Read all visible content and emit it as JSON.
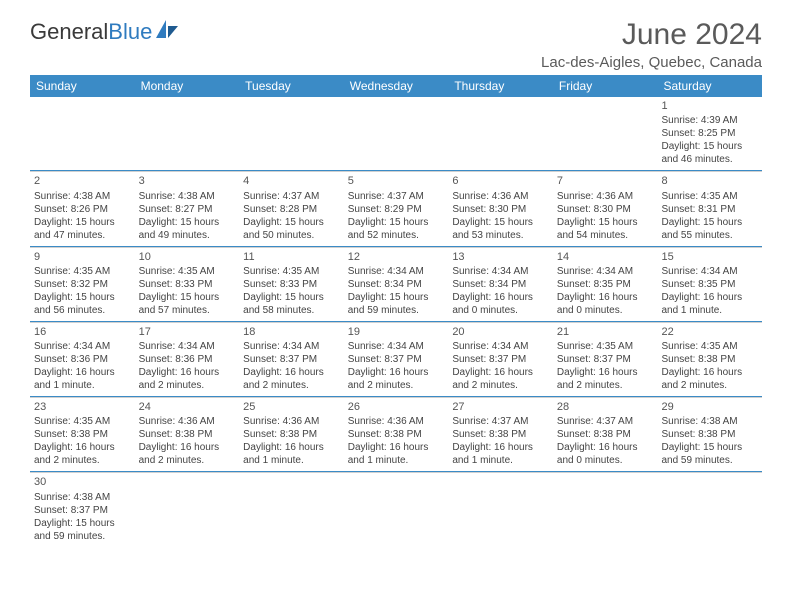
{
  "brand": {
    "word1": "General",
    "word2": "Blue"
  },
  "title": "June 2024",
  "location": "Lac-des-Aigles, Quebec, Canada",
  "dayHeaders": [
    "Sunday",
    "Monday",
    "Tuesday",
    "Wednesday",
    "Thursday",
    "Friday",
    "Saturday"
  ],
  "colors": {
    "headerBg": "#3b8bc6",
    "headerText": "#ffffff",
    "rowDivider": "#3b8bc6",
    "cellDivider": "#d0d0d0",
    "textMain": "#444444",
    "titleText": "#5a5a5a",
    "logoGray": "#3a3a3a",
    "logoBlue": "#2f7bbf"
  },
  "weeks": [
    [
      null,
      null,
      null,
      null,
      null,
      null,
      {
        "n": "1",
        "sr": "Sunrise: 4:39 AM",
        "ss": "Sunset: 8:25 PM",
        "d1": "Daylight: 15 hours",
        "d2": "and 46 minutes."
      }
    ],
    [
      {
        "n": "2",
        "sr": "Sunrise: 4:38 AM",
        "ss": "Sunset: 8:26 PM",
        "d1": "Daylight: 15 hours",
        "d2": "and 47 minutes."
      },
      {
        "n": "3",
        "sr": "Sunrise: 4:38 AM",
        "ss": "Sunset: 8:27 PM",
        "d1": "Daylight: 15 hours",
        "d2": "and 49 minutes."
      },
      {
        "n": "4",
        "sr": "Sunrise: 4:37 AM",
        "ss": "Sunset: 8:28 PM",
        "d1": "Daylight: 15 hours",
        "d2": "and 50 minutes."
      },
      {
        "n": "5",
        "sr": "Sunrise: 4:37 AM",
        "ss": "Sunset: 8:29 PM",
        "d1": "Daylight: 15 hours",
        "d2": "and 52 minutes."
      },
      {
        "n": "6",
        "sr": "Sunrise: 4:36 AM",
        "ss": "Sunset: 8:30 PM",
        "d1": "Daylight: 15 hours",
        "d2": "and 53 minutes."
      },
      {
        "n": "7",
        "sr": "Sunrise: 4:36 AM",
        "ss": "Sunset: 8:30 PM",
        "d1": "Daylight: 15 hours",
        "d2": "and 54 minutes."
      },
      {
        "n": "8",
        "sr": "Sunrise: 4:35 AM",
        "ss": "Sunset: 8:31 PM",
        "d1": "Daylight: 15 hours",
        "d2": "and 55 minutes."
      }
    ],
    [
      {
        "n": "9",
        "sr": "Sunrise: 4:35 AM",
        "ss": "Sunset: 8:32 PM",
        "d1": "Daylight: 15 hours",
        "d2": "and 56 minutes."
      },
      {
        "n": "10",
        "sr": "Sunrise: 4:35 AM",
        "ss": "Sunset: 8:33 PM",
        "d1": "Daylight: 15 hours",
        "d2": "and 57 minutes."
      },
      {
        "n": "11",
        "sr": "Sunrise: 4:35 AM",
        "ss": "Sunset: 8:33 PM",
        "d1": "Daylight: 15 hours",
        "d2": "and 58 minutes."
      },
      {
        "n": "12",
        "sr": "Sunrise: 4:34 AM",
        "ss": "Sunset: 8:34 PM",
        "d1": "Daylight: 15 hours",
        "d2": "and 59 minutes."
      },
      {
        "n": "13",
        "sr": "Sunrise: 4:34 AM",
        "ss": "Sunset: 8:34 PM",
        "d1": "Daylight: 16 hours",
        "d2": "and 0 minutes."
      },
      {
        "n": "14",
        "sr": "Sunrise: 4:34 AM",
        "ss": "Sunset: 8:35 PM",
        "d1": "Daylight: 16 hours",
        "d2": "and 0 minutes."
      },
      {
        "n": "15",
        "sr": "Sunrise: 4:34 AM",
        "ss": "Sunset: 8:35 PM",
        "d1": "Daylight: 16 hours",
        "d2": "and 1 minute."
      }
    ],
    [
      {
        "n": "16",
        "sr": "Sunrise: 4:34 AM",
        "ss": "Sunset: 8:36 PM",
        "d1": "Daylight: 16 hours",
        "d2": "and 1 minute."
      },
      {
        "n": "17",
        "sr": "Sunrise: 4:34 AM",
        "ss": "Sunset: 8:36 PM",
        "d1": "Daylight: 16 hours",
        "d2": "and 2 minutes."
      },
      {
        "n": "18",
        "sr": "Sunrise: 4:34 AM",
        "ss": "Sunset: 8:37 PM",
        "d1": "Daylight: 16 hours",
        "d2": "and 2 minutes."
      },
      {
        "n": "19",
        "sr": "Sunrise: 4:34 AM",
        "ss": "Sunset: 8:37 PM",
        "d1": "Daylight: 16 hours",
        "d2": "and 2 minutes."
      },
      {
        "n": "20",
        "sr": "Sunrise: 4:34 AM",
        "ss": "Sunset: 8:37 PM",
        "d1": "Daylight: 16 hours",
        "d2": "and 2 minutes."
      },
      {
        "n": "21",
        "sr": "Sunrise: 4:35 AM",
        "ss": "Sunset: 8:37 PM",
        "d1": "Daylight: 16 hours",
        "d2": "and 2 minutes."
      },
      {
        "n": "22",
        "sr": "Sunrise: 4:35 AM",
        "ss": "Sunset: 8:38 PM",
        "d1": "Daylight: 16 hours",
        "d2": "and 2 minutes."
      }
    ],
    [
      {
        "n": "23",
        "sr": "Sunrise: 4:35 AM",
        "ss": "Sunset: 8:38 PM",
        "d1": "Daylight: 16 hours",
        "d2": "and 2 minutes."
      },
      {
        "n": "24",
        "sr": "Sunrise: 4:36 AM",
        "ss": "Sunset: 8:38 PM",
        "d1": "Daylight: 16 hours",
        "d2": "and 2 minutes."
      },
      {
        "n": "25",
        "sr": "Sunrise: 4:36 AM",
        "ss": "Sunset: 8:38 PM",
        "d1": "Daylight: 16 hours",
        "d2": "and 1 minute."
      },
      {
        "n": "26",
        "sr": "Sunrise: 4:36 AM",
        "ss": "Sunset: 8:38 PM",
        "d1": "Daylight: 16 hours",
        "d2": "and 1 minute."
      },
      {
        "n": "27",
        "sr": "Sunrise: 4:37 AM",
        "ss": "Sunset: 8:38 PM",
        "d1": "Daylight: 16 hours",
        "d2": "and 1 minute."
      },
      {
        "n": "28",
        "sr": "Sunrise: 4:37 AM",
        "ss": "Sunset: 8:38 PM",
        "d1": "Daylight: 16 hours",
        "d2": "and 0 minutes."
      },
      {
        "n": "29",
        "sr": "Sunrise: 4:38 AM",
        "ss": "Sunset: 8:38 PM",
        "d1": "Daylight: 15 hours",
        "d2": "and 59 minutes."
      }
    ],
    [
      {
        "n": "30",
        "sr": "Sunrise: 4:38 AM",
        "ss": "Sunset: 8:37 PM",
        "d1": "Daylight: 15 hours",
        "d2": "and 59 minutes."
      },
      null,
      null,
      null,
      null,
      null,
      null
    ]
  ]
}
